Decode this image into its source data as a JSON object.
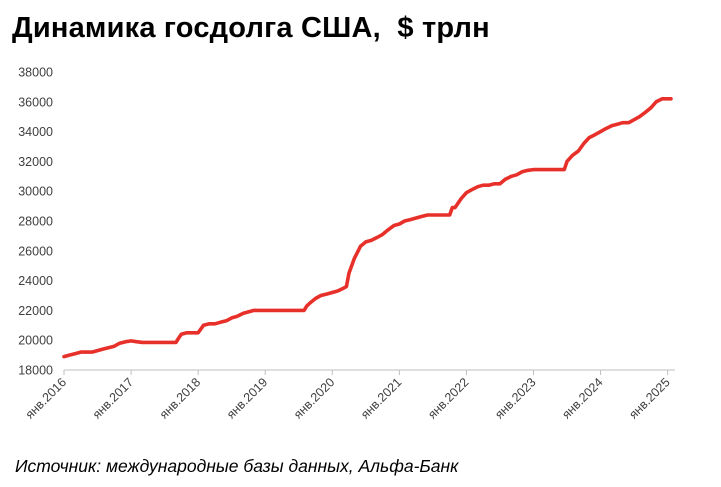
{
  "title": "Динамика госдолга США,  $ трлн",
  "source": "Источник: международные базы данных, Альфа-Банк",
  "colors": {
    "line": "#e8302a",
    "axis": "#bfbfbf",
    "text": "#404040"
  },
  "chart_data": {
    "type": "line",
    "title": "Динамика госдолга США,  $ трлн",
    "xlabel": "",
    "ylabel": "",
    "ylim": [
      18000,
      38000
    ],
    "xlim": [
      2016.0,
      2025.08
    ],
    "grid": false,
    "yticks": [
      "18000",
      "20000",
      "22000",
      "24000",
      "26000",
      "28000",
      "30000",
      "32000",
      "34000",
      "36000",
      "38000"
    ],
    "xticks": [
      {
        "label": "янв.2016",
        "x": 2016.0
      },
      {
        "label": "янв.2017",
        "x": 2017.0
      },
      {
        "label": "янв.2018",
        "x": 2018.0
      },
      {
        "label": "янв.2019",
        "x": 2019.0
      },
      {
        "label": "янв.2020",
        "x": 2020.0
      },
      {
        "label": "янв.2021",
        "x": 2021.0
      },
      {
        "label": "янв.2022",
        "x": 2022.0
      },
      {
        "label": "янв.2023",
        "x": 2023.0
      },
      {
        "label": "янв.2024",
        "x": 2024.0
      },
      {
        "label": "янв.2025",
        "x": 2025.0
      }
    ],
    "series": [
      {
        "x": [
          2016.0,
          2016.08,
          2016.17,
          2016.25,
          2016.33,
          2016.42,
          2016.5,
          2016.58,
          2016.67,
          2016.75,
          2016.83,
          2016.92,
          2017.0,
          2017.08,
          2017.17,
          2017.25,
          2017.33,
          2017.42,
          2017.5,
          2017.58,
          2017.67,
          2017.71,
          2017.75,
          2017.83,
          2017.92,
          2018.0,
          2018.08,
          2018.17,
          2018.25,
          2018.33,
          2018.42,
          2018.5,
          2018.58,
          2018.67,
          2018.75,
          2018.83,
          2018.92,
          2019.0,
          2019.08,
          2019.17,
          2019.25,
          2019.33,
          2019.42,
          2019.5,
          2019.58,
          2019.62,
          2019.67,
          2019.75,
          2019.83,
          2019.92,
          2020.0,
          2020.08,
          2020.17,
          2020.21,
          2020.25,
          2020.33,
          2020.42,
          2020.5,
          2020.58,
          2020.67,
          2020.75,
          2020.83,
          2020.92,
          2021.0,
          2021.08,
          2021.17,
          2021.25,
          2021.33,
          2021.42,
          2021.5,
          2021.58,
          2021.67,
          2021.75,
          2021.79,
          2021.83,
          2021.92,
          2022.0,
          2022.08,
          2022.17,
          2022.25,
          2022.33,
          2022.42,
          2022.5,
          2022.58,
          2022.67,
          2022.75,
          2022.83,
          2022.92,
          2023.0,
          2023.08,
          2023.17,
          2023.25,
          2023.33,
          2023.42,
          2023.46,
          2023.5,
          2023.58,
          2023.67,
          2023.75,
          2023.83,
          2023.92,
          2024.0,
          2024.08,
          2024.17,
          2024.25,
          2024.33,
          2024.42,
          2024.5,
          2024.58,
          2024.67,
          2024.75,
          2024.83,
          2024.92,
          2025.0,
          2025.05
        ],
        "values": [
          18900,
          19000,
          19100,
          19200,
          19200,
          19200,
          19300,
          19400,
          19500,
          19600,
          19800,
          19900,
          19950,
          19900,
          19850,
          19850,
          19850,
          19850,
          19850,
          19850,
          19850,
          20150,
          20400,
          20500,
          20500,
          20500,
          21000,
          21100,
          21100,
          21200,
          21300,
          21500,
          21600,
          21800,
          21900,
          22000,
          22000,
          22000,
          22000,
          22000,
          22000,
          22000,
          22000,
          22000,
          22000,
          22300,
          22500,
          22800,
          23000,
          23100,
          23200,
          23300,
          23500,
          23600,
          24500,
          25500,
          26300,
          26600,
          26700,
          26900,
          27100,
          27400,
          27700,
          27800,
          28000,
          28100,
          28200,
          28300,
          28400,
          28400,
          28400,
          28400,
          28400,
          28900,
          28900,
          29500,
          29900,
          30100,
          30300,
          30400,
          30400,
          30500,
          30500,
          30800,
          31000,
          31100,
          31300,
          31400,
          31450,
          31450,
          31450,
          31450,
          31450,
          31450,
          31450,
          32000,
          32400,
          32700,
          33200,
          33600,
          33800,
          34000,
          34200,
          34400,
          34500,
          34600,
          34600,
          34800,
          35000,
          35300,
          35600,
          36000,
          36200,
          36200,
          36200
        ]
      }
    ]
  }
}
